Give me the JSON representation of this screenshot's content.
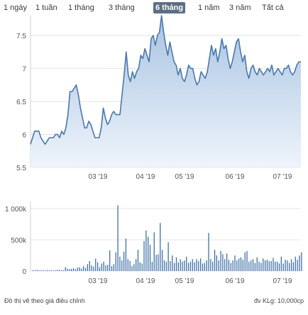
{
  "range_buttons": [
    {
      "label": "1 ngày"
    },
    {
      "label": "1 tuần"
    },
    {
      "label": "1 tháng"
    },
    {
      "label": "3 tháng"
    },
    {
      "label": "6 tháng",
      "active": true
    },
    {
      "label": "1 năm"
    },
    {
      "label": "3 năm"
    },
    {
      "label": "Tất cả"
    }
  ],
  "footer": {
    "left": "Đồ thị vẽ theo giá điều chỉnh",
    "right": "đv KLg: 10,000cp"
  },
  "colors": {
    "line": "#4a78a8",
    "area_top": "#a9c4e2",
    "area_bottom": "#eef4fb",
    "volume": "#3b6ea5",
    "active_button": "#5b6f82"
  },
  "chart_data": [
    {
      "type": "area",
      "title": "",
      "x_tick_labels": [
        "03 '19",
        "04 '19",
        "05 '19",
        "06 '19",
        "07 '19"
      ],
      "y_tick_labels": [
        "5.5",
        "6",
        "6.5",
        "7",
        "7.5"
      ],
      "ylim": [
        5.5,
        7.8
      ],
      "grid": true,
      "values": [
        5.85,
        5.95,
        6.05,
        6.05,
        6.05,
        5.95,
        5.9,
        5.85,
        5.9,
        5.95,
        5.95,
        5.95,
        6.0,
        6.0,
        5.95,
        6.05,
        6.0,
        6.1,
        6.3,
        6.65,
        6.65,
        6.7,
        6.75,
        6.6,
        6.4,
        6.25,
        6.1,
        6.1,
        6.2,
        6.15,
        6.05,
        5.95,
        5.95,
        5.95,
        6.1,
        6.4,
        6.25,
        6.15,
        6.2,
        6.3,
        6.35,
        6.3,
        6.3,
        6.3,
        6.6,
        6.9,
        7.25,
        6.9,
        6.8,
        6.95,
        6.85,
        6.95,
        7.0,
        7.2,
        7.15,
        7.3,
        7.2,
        7.1,
        7.45,
        7.5,
        7.35,
        7.5,
        7.55,
        7.8,
        7.55,
        7.35,
        7.2,
        7.4,
        7.25,
        7.1,
        7.05,
        6.9,
        7.0,
        6.85,
        6.8,
        6.9,
        7.05,
        7.0,
        7.0,
        6.85,
        6.75,
        6.8,
        6.95,
        6.9,
        6.85,
        6.95,
        7.15,
        7.35,
        7.2,
        7.3,
        7.1,
        7.25,
        7.45,
        7.3,
        7.35,
        7.15,
        7.0,
        7.1,
        7.25,
        7.4,
        7.45,
        7.25,
        7.1,
        7.2,
        6.95,
        6.85,
        7.0,
        7.05,
        6.95,
        6.9,
        7.0,
        6.95,
        6.9,
        6.95,
        7.0,
        6.95,
        7.05,
        6.9,
        6.95,
        7.0,
        6.95,
        6.9,
        7.0,
        7.0,
        7.05,
        6.95,
        6.9,
        6.95,
        7.05,
        7.1,
        7.1
      ]
    },
    {
      "type": "bar",
      "title": "",
      "y_tick_labels": [
        "0",
        "500k",
        "1 000k"
      ],
      "ylim": [
        0,
        1000
      ],
      "values": [
        15,
        12,
        18,
        10,
        14,
        12,
        9,
        16,
        11,
        13,
        10,
        12,
        20,
        18,
        15,
        14,
        60,
        40,
        30,
        35,
        45,
        30,
        55,
        60,
        40,
        80,
        50,
        110,
        160,
        90,
        70,
        200,
        140,
        60,
        120,
        150,
        90,
        100,
        330,
        80,
        110,
        300,
        1050,
        230,
        170,
        310,
        520,
        190,
        160,
        80,
        110,
        190,
        340,
        140,
        120,
        480,
        650,
        550,
        420,
        150,
        620,
        260,
        270,
        770,
        340,
        170,
        150,
        460,
        160,
        250,
        130,
        220,
        140,
        190,
        150,
        170,
        230,
        130,
        150,
        190,
        140,
        190,
        160,
        200,
        120,
        130,
        170,
        610,
        190,
        150,
        340,
        250,
        170,
        320,
        270,
        190,
        280,
        180,
        130,
        170,
        250,
        170,
        200,
        220,
        180,
        300,
        320,
        150,
        170,
        190,
        130,
        220,
        150,
        130,
        200,
        170,
        180,
        160,
        160,
        210,
        150,
        150,
        120,
        230,
        120,
        180,
        170,
        130,
        190,
        140,
        230,
        180,
        250,
        300
      ]
    }
  ]
}
